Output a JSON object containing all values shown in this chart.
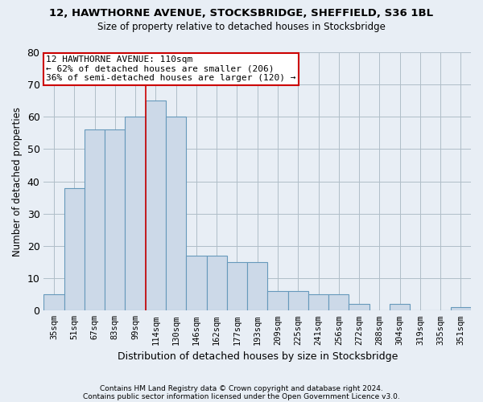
{
  "title1": "12, HAWTHORNE AVENUE, STOCKSBRIDGE, SHEFFIELD, S36 1BL",
  "title2": "Size of property relative to detached houses in Stocksbridge",
  "xlabel": "Distribution of detached houses by size in Stocksbridge",
  "ylabel": "Number of detached properties",
  "bar_color": "#ccd9e8",
  "bar_edge_color": "#6699bb",
  "categories": [
    "35sqm",
    "51sqm",
    "67sqm",
    "83sqm",
    "99sqm",
    "114sqm",
    "130sqm",
    "146sqm",
    "162sqm",
    "177sqm",
    "193sqm",
    "209sqm",
    "225sqm",
    "241sqm",
    "256sqm",
    "272sqm",
    "288sqm",
    "304sqm",
    "319sqm",
    "335sqm",
    "351sqm"
  ],
  "values": [
    5,
    38,
    56,
    56,
    60,
    65,
    60,
    17,
    17,
    15,
    15,
    6,
    6,
    5,
    5,
    2,
    0,
    2,
    0,
    0,
    1
  ],
  "ylim": [
    0,
    80
  ],
  "yticks": [
    0,
    10,
    20,
    30,
    40,
    50,
    60,
    70,
    80
  ],
  "annotation_text": "12 HAWTHORNE AVENUE: 110sqm\n← 62% of detached houses are smaller (206)\n36% of semi-detached houses are larger (120) →",
  "annotation_box_color": "white",
  "annotation_box_edge": "#cc0000",
  "vline_color": "#cc0000",
  "footnote1": "Contains HM Land Registry data © Crown copyright and database right 2024.",
  "footnote2": "Contains public sector information licensed under the Open Government Licence v3.0.",
  "background_color": "#e8eef5",
  "plot_background": "#e8eef5",
  "grid_color": "#b0bec8"
}
